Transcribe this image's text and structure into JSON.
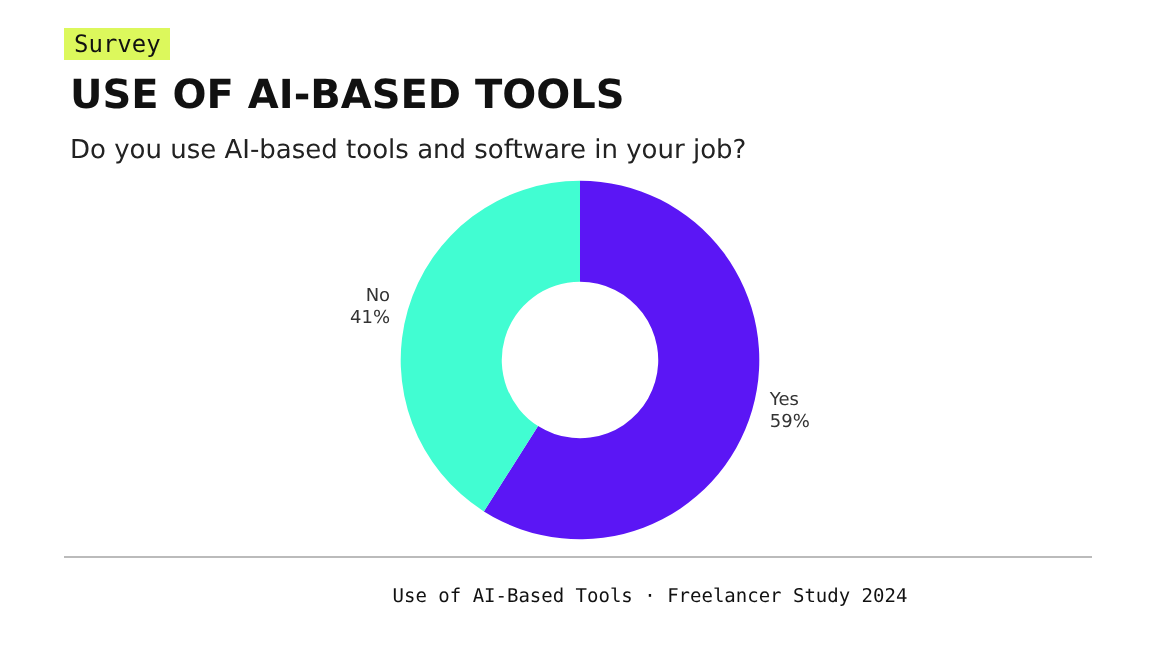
{
  "chart_data": {
    "type": "donut",
    "title": "USE OF AI-BASED TOOLS",
    "subtitle": "Do you use AI-based tools and software in your job?",
    "annotations": [
      "Survey",
      "Use of AI-Based Tools · Freelancer Study 2024"
    ],
    "categories": [
      "Yes",
      "No"
    ],
    "values": [
      59,
      41
    ],
    "colors": [
      "#5b16f5",
      "#41fdd2"
    ],
    "value_labels": [
      "59%",
      "41%"
    ],
    "legend": false
  }
}
